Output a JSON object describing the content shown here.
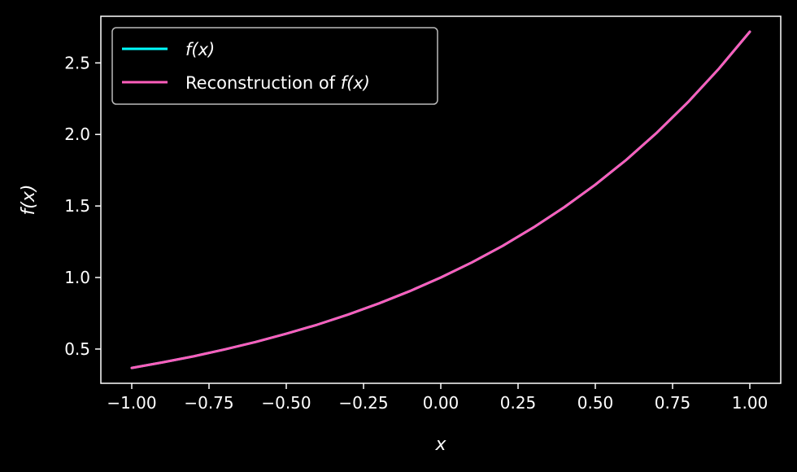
{
  "chart_data": {
    "type": "line",
    "title": "",
    "xlabel": "x",
    "ylabel": "f(x)",
    "xlim": [
      -1.1,
      1.1
    ],
    "ylim": [
      0.2605,
      2.826
    ],
    "x_ticks": [
      -1.0,
      -0.75,
      -0.5,
      -0.25,
      0.0,
      0.25,
      0.5,
      0.75,
      1.0
    ],
    "x_tick_labels": [
      "−1.00",
      "−0.75",
      "−0.50",
      "−0.25",
      "0.00",
      "0.25",
      "0.50",
      "0.75",
      "1.00"
    ],
    "y_ticks": [
      0.5,
      1.0,
      1.5,
      2.0,
      2.5
    ],
    "y_tick_labels": [
      "0.5",
      "1.0",
      "1.5",
      "2.0",
      "2.5"
    ],
    "grid": false,
    "legend_position": "top-left",
    "background": "#000000",
    "series": [
      {
        "name": "f(x)",
        "color": "#00ffff",
        "x": [
          -1.0,
          -0.9,
          -0.8,
          -0.7,
          -0.6,
          -0.5,
          -0.4,
          -0.3,
          -0.2,
          -0.1,
          0.0,
          0.1,
          0.2,
          0.3,
          0.4,
          0.5,
          0.6,
          0.7,
          0.8,
          0.9,
          1.0
        ],
        "y": [
          0.368,
          0.407,
          0.449,
          0.497,
          0.549,
          0.607,
          0.67,
          0.741,
          0.819,
          0.905,
          1.0,
          1.105,
          1.221,
          1.35,
          1.492,
          1.649,
          1.822,
          2.014,
          2.226,
          2.46,
          2.718
        ]
      },
      {
        "name": "Reconstruction of f(x)",
        "color": "#ff5ebc",
        "x": [
          -1.0,
          -0.9,
          -0.8,
          -0.7,
          -0.6,
          -0.5,
          -0.4,
          -0.3,
          -0.2,
          -0.1,
          0.0,
          0.1,
          0.2,
          0.3,
          0.4,
          0.5,
          0.6,
          0.7,
          0.8,
          0.9,
          1.0
        ],
        "y": [
          0.368,
          0.407,
          0.449,
          0.497,
          0.549,
          0.607,
          0.67,
          0.741,
          0.819,
          0.905,
          1.0,
          1.105,
          1.221,
          1.35,
          1.492,
          1.649,
          1.822,
          2.014,
          2.226,
          2.46,
          2.718
        ]
      }
    ],
    "legend": {
      "items": [
        {
          "prefix": "",
          "math": "f(x)"
        },
        {
          "prefix": "Reconstruction of ",
          "math": "f(x)"
        }
      ]
    }
  }
}
